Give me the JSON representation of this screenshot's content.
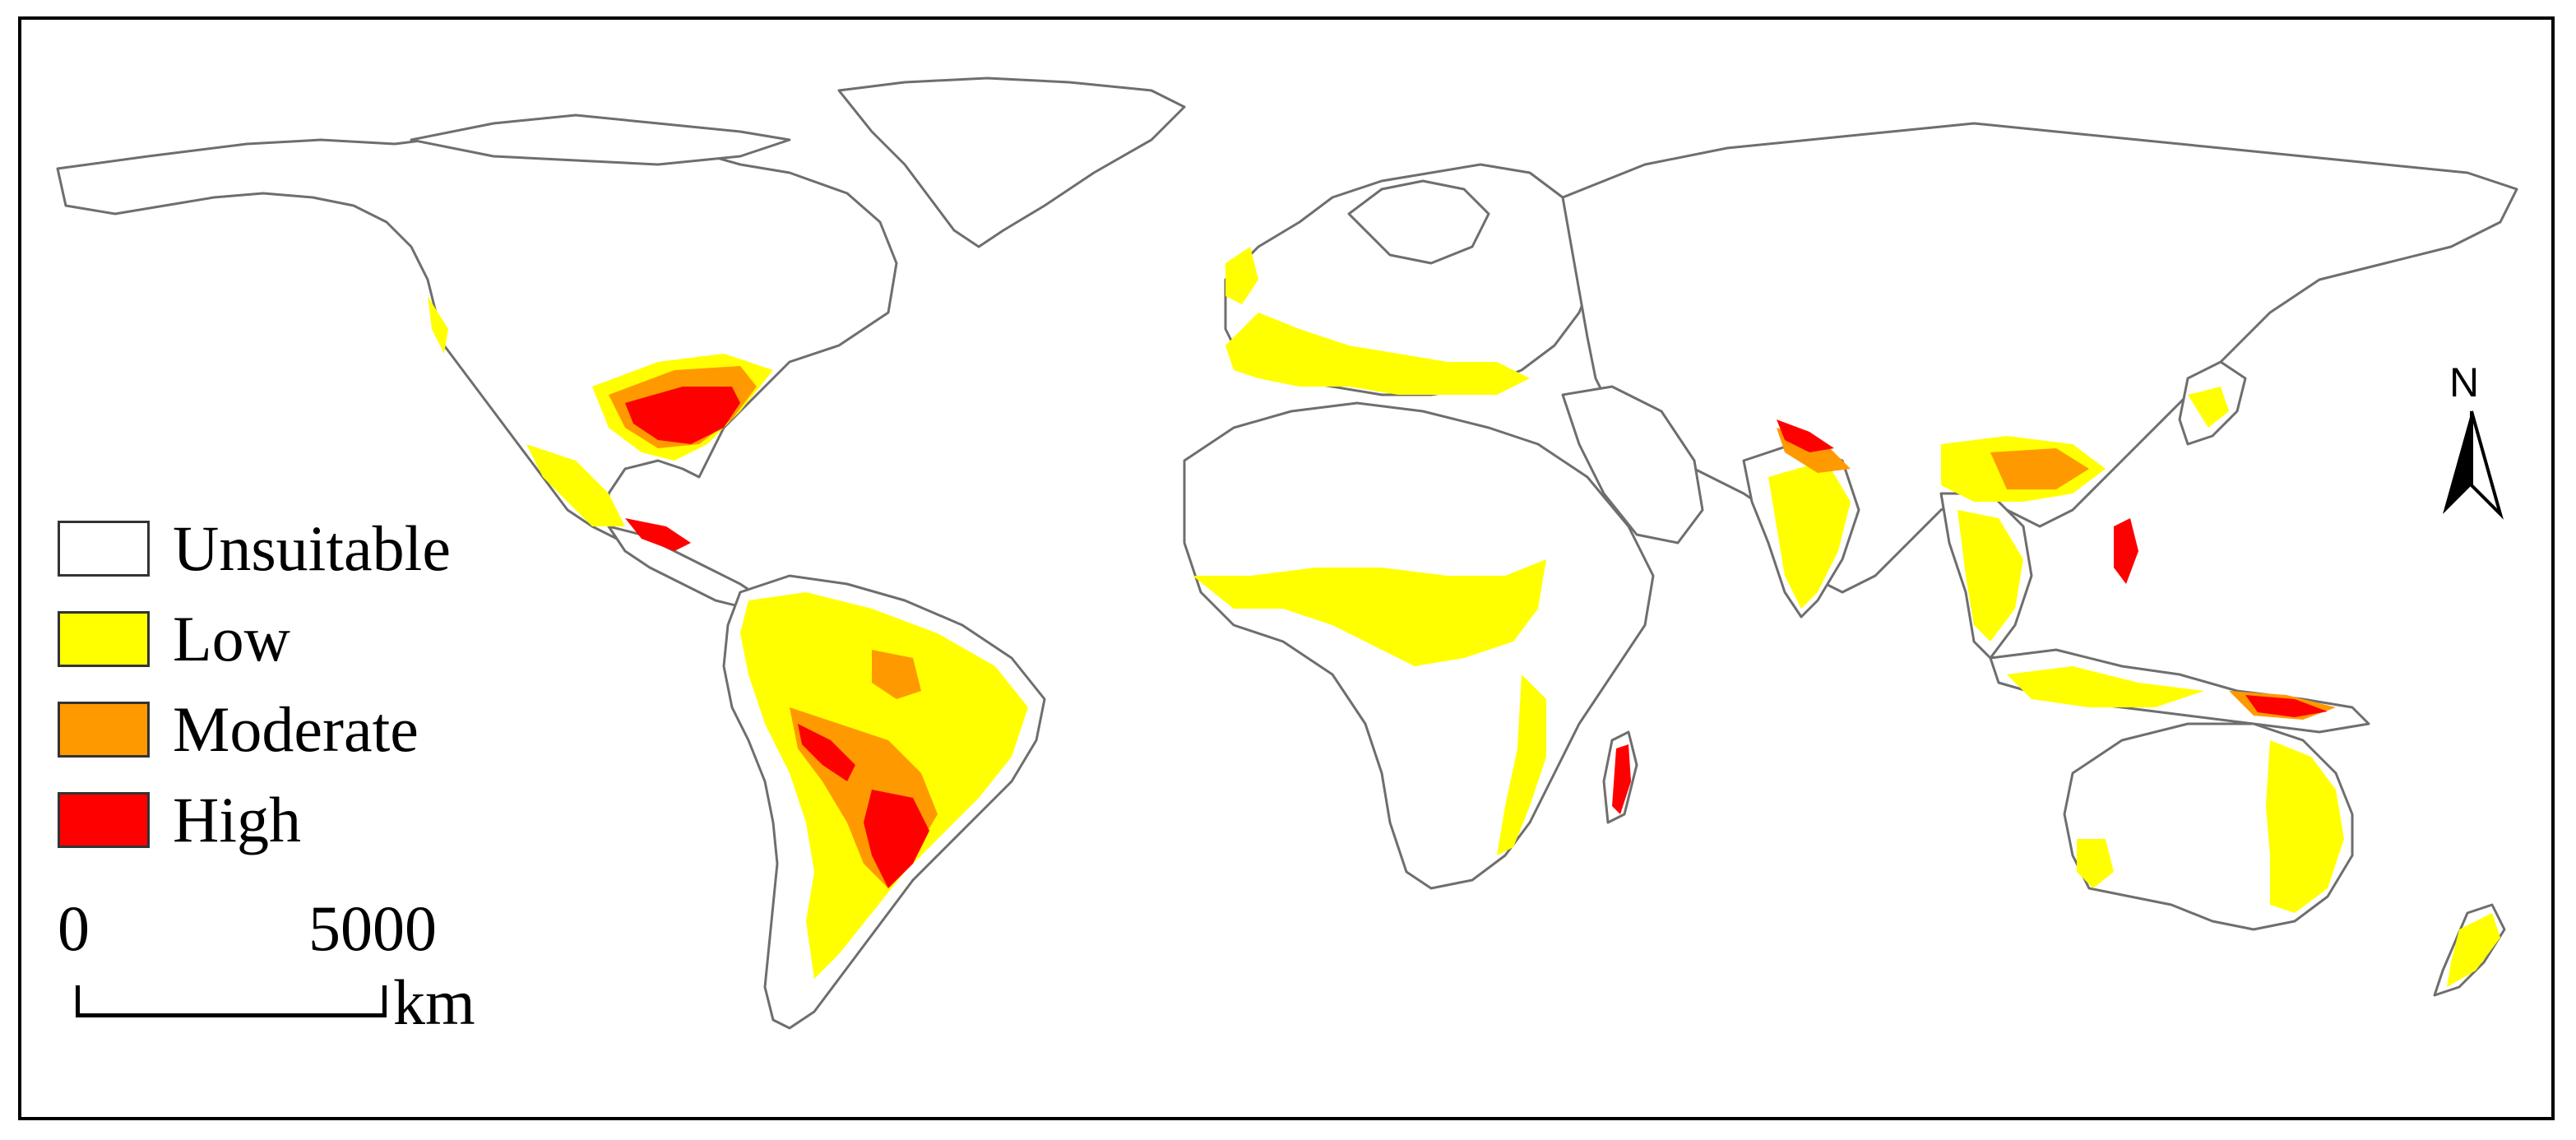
{
  "legend": {
    "items": [
      {
        "label": "Unsuitable",
        "color": "#ffffff"
      },
      {
        "label": "Low",
        "color": "#ffff00"
      },
      {
        "label": "Moderate",
        "color": "#ff9900"
      },
      {
        "label": "High",
        "color": "#ff0000"
      }
    ]
  },
  "scalebar": {
    "start_label": "0",
    "end_label": "5000",
    "unit_label": "km"
  },
  "north_arrow": {
    "label": "N"
  },
  "colors": {
    "border": "#6e6e6e",
    "land": "#ffffff",
    "unsuitable": "#ffffff",
    "low": "#ffff00",
    "moderate": "#ff9900",
    "high": "#ff0000"
  }
}
